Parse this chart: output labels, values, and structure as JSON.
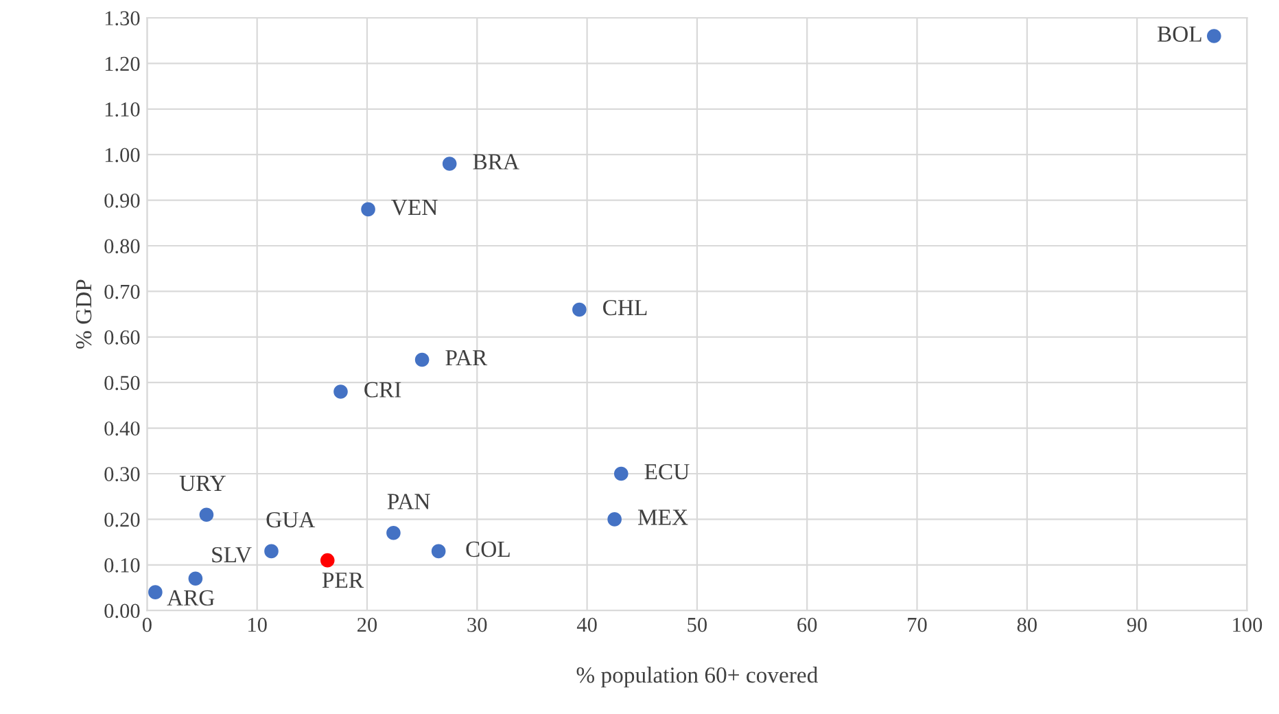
{
  "chart_data": {
    "type": "scatter",
    "xlabel": "% population 60+ covered",
    "ylabel": "% GDP",
    "x": [
      97,
      27.5,
      20.1,
      39.3,
      25,
      17.6,
      43.1,
      42.5,
      5.4,
      11.3,
      22.4,
      26.5,
      16.4,
      4.4,
      0.75
    ],
    "values": [
      1.26,
      0.98,
      0.88,
      0.66,
      0.55,
      0.48,
      0.3,
      0.2,
      0.21,
      0.13,
      0.17,
      0.13,
      0.11,
      0.07,
      0.04
    ],
    "colors": [
      "#4472c4",
      "#4472c4",
      "#4472c4",
      "#4472c4",
      "#4472c4",
      "#4472c4",
      "#4472c4",
      "#4472c4",
      "#4472c4",
      "#4472c4",
      "#4472c4",
      "#4472c4",
      "#ff0000",
      "#4472c4",
      "#4472c4"
    ],
    "annotations": [
      {
        "text": "BOL",
        "x": 97,
        "y": 1.26
      },
      {
        "text": "BRA",
        "x": 27.5,
        "y": 0.98
      },
      {
        "text": "VEN",
        "x": 20.1,
        "y": 0.88
      },
      {
        "text": "CHL",
        "x": 39.3,
        "y": 0.66
      },
      {
        "text": "PAR",
        "x": 25,
        "y": 0.55
      },
      {
        "text": "CRI",
        "x": 17.6,
        "y": 0.48
      },
      {
        "text": "ECU",
        "x": 43.1,
        "y": 0.3
      },
      {
        "text": "MEX",
        "x": 42.5,
        "y": 0.2
      },
      {
        "text": "URY",
        "x": 5.4,
        "y": 0.21
      },
      {
        "text": "GUA",
        "x": 11.3,
        "y": 0.13
      },
      {
        "text": "PAN",
        "x": 22.4,
        "y": 0.17
      },
      {
        "text": "COL",
        "x": 26.5,
        "y": 0.13
      },
      {
        "text": "PER",
        "x": 16.4,
        "y": 0.11
      },
      {
        "text": "SLV",
        "x": 4.4,
        "y": 0.07
      },
      {
        "text": "ARG",
        "x": 0.75,
        "y": 0.04
      }
    ],
    "xlim": [
      0,
      100
    ],
    "xticks": [
      0,
      10,
      20,
      30,
      40,
      50,
      60,
      70,
      80,
      90,
      100
    ],
    "ylim": [
      0,
      1.3
    ],
    "yticks": [
      {
        "value": 0,
        "label": "0.00"
      },
      {
        "value": 0.1,
        "label": "0.10"
      },
      {
        "value": 0.2,
        "label": "0.20"
      },
      {
        "value": 0.3,
        "label": "0.30"
      },
      {
        "value": 0.4,
        "label": "0.40"
      },
      {
        "value": 0.5,
        "label": "0.50"
      },
      {
        "value": 0.6,
        "label": "0.60"
      },
      {
        "value": 0.7,
        "label": "0.70"
      },
      {
        "value": 0.8,
        "label": "0.80"
      },
      {
        "value": 0.9,
        "label": "0.90"
      },
      {
        "value": 1.0,
        "label": "1.00"
      },
      {
        "value": 1.1,
        "label": "1.10"
      },
      {
        "value": 1.2,
        "label": "1.20"
      },
      {
        "value": 1.3,
        "label": "1.30"
      }
    ],
    "grid": true,
    "marker": "circle"
  }
}
